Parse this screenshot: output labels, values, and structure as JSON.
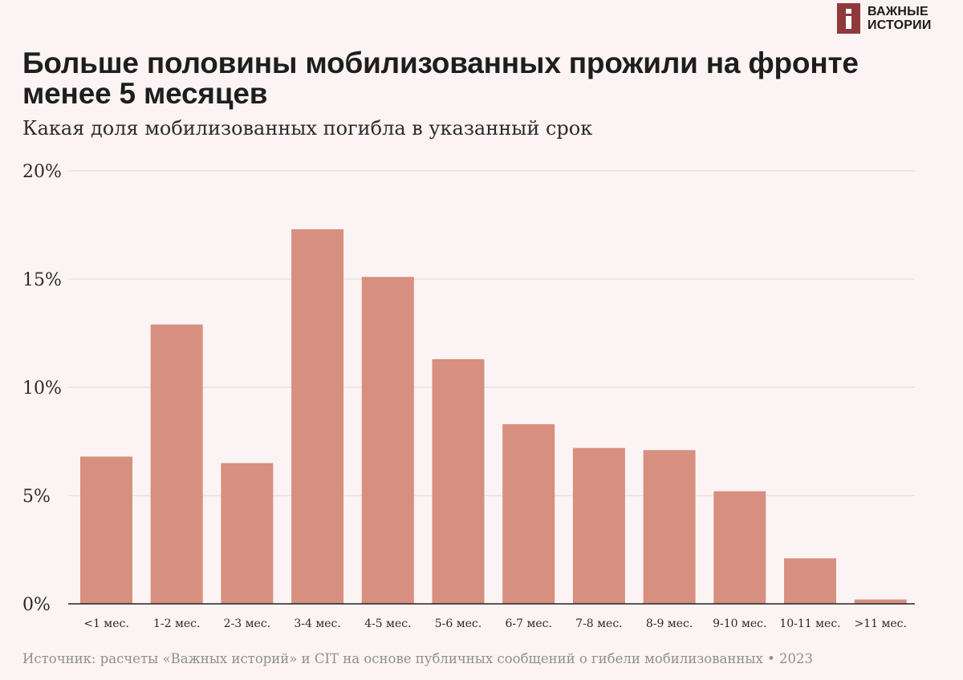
{
  "brand": {
    "logo_line1": "ВАЖНЫЕ",
    "logo_line2": "ИСТОРИИ"
  },
  "title": "Больше половины мобилизованных прожили на фронте менее 5 месяцев",
  "subtitle": "Какая доля мобилизованных погибла в указанный срок",
  "source": "Источник: расчеты «Важных историй» и CIT на основе публичных сообщений о гибели мобилизованных • 2023",
  "colors": {
    "bar": "#d78f7f",
    "grid": "#e3dddd",
    "axis": "#222222",
    "background": "#fcf4f4"
  },
  "chart_data": {
    "type": "bar",
    "title": "Больше половины мобилизованных прожили на фронте менее 5 месяцев",
    "subtitle": "Какая доля мобилизованных погибла в указанный срок",
    "categories": [
      "<1 мес.",
      "1-2 мес.",
      "2-3 мес.",
      "3-4 мес.",
      "4-5 мес.",
      "5-6 мес.",
      "6-7 мес.",
      "7-8 мес.",
      "8-9 мес.",
      "9-10 мес.",
      "10-11 мес.",
      ">11 мес."
    ],
    "values": [
      6.8,
      12.9,
      6.5,
      17.3,
      15.1,
      11.3,
      8.3,
      7.2,
      7.1,
      5.2,
      2.1,
      0.2
    ],
    "unit": "%",
    "ylim": [
      0,
      20
    ],
    "yticks": [
      0,
      5,
      10,
      15,
      20
    ],
    "ytick_labels": [
      "0%",
      "5%",
      "10%",
      "15%",
      "20%"
    ],
    "xlabel": "",
    "ylabel": "",
    "grid": true,
    "legend": "none"
  }
}
